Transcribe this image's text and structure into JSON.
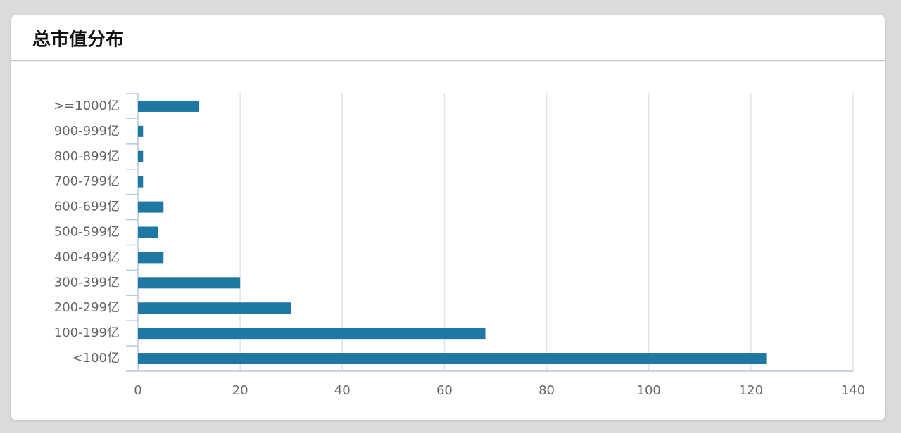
{
  "chart_data": {
    "type": "bar",
    "orientation": "horizontal",
    "title": "总市值分布",
    "categories": [
      ">=1000亿",
      "900-999亿",
      "800-899亿",
      "700-799亿",
      "600-699亿",
      "500-599亿",
      "400-499亿",
      "300-399亿",
      "200-299亿",
      "100-199亿",
      "<100亿"
    ],
    "values": [
      12,
      1,
      1,
      1,
      5,
      4,
      5,
      20,
      30,
      68,
      123
    ],
    "color": "#1f78a4",
    "xlim": [
      0,
      140
    ],
    "xticks": [
      0,
      20,
      40,
      60,
      80,
      100,
      120,
      140
    ],
    "grid": true
  }
}
